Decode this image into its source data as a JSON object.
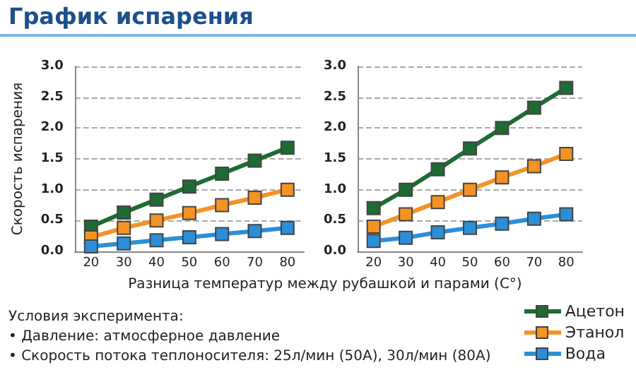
{
  "chart_data": [
    {
      "type": "line",
      "title": "График испарения",
      "xlabel": "Разница температур между рубашкой и парами (C°)",
      "ylabel": "Скорость испарения",
      "x": [
        20,
        30,
        40,
        50,
        60,
        70,
        80
      ],
      "series": [
        {
          "name": "Ацетон",
          "color": "#1e6b34",
          "values": [
            0.4,
            0.63,
            0.84,
            1.05,
            1.26,
            1.47,
            1.68
          ]
        },
        {
          "name": "Этанол",
          "color": "#f39323",
          "values": [
            0.23,
            0.38,
            0.5,
            0.62,
            0.75,
            0.87,
            1.0
          ]
        },
        {
          "name": "Вода",
          "color": "#2a8fd8",
          "values": [
            0.08,
            0.13,
            0.18,
            0.23,
            0.28,
            0.33,
            0.38
          ]
        }
      ],
      "xlim": [
        15,
        85
      ],
      "xticks": [
        20,
        30,
        40,
        50,
        60,
        70,
        80
      ],
      "ylim": [
        0,
        3
      ],
      "yticks": [
        {
          "value": 0,
          "label": "0.0"
        },
        0.5,
        {
          "value": 1,
          "label": "1.0"
        },
        1.5,
        {
          "value": 2,
          "label": "2.0"
        },
        2.5,
        {
          "value": 3,
          "label": "3.0"
        }
      ],
      "grid": "y",
      "marker": "square",
      "line_style": "solid",
      "legend": "bottom right",
      "annotations": [
        "Условия эксперимента:",
        "• Давление: атмосферное давление",
        "• Скорость потока теплоносителя: 25л/мин (50A), 30л/мин (80A)"
      ]
    },
    {
      "type": "line",
      "x": [
        20,
        30,
        40,
        50,
        60,
        70,
        80
      ],
      "series": [
        {
          "color": "#1e6b34",
          "values": [
            0.7,
            1.0,
            1.33,
            1.67,
            2.0,
            2.33,
            2.65
          ]
        },
        {
          "color": "#f39323",
          "values": [
            0.4,
            0.6,
            0.8,
            1.0,
            1.2,
            1.38,
            1.58
          ]
        },
        {
          "color": "#2a8fd8",
          "values": [
            0.17,
            0.22,
            0.31,
            0.38,
            0.45,
            0.53,
            0.6
          ]
        }
      ],
      "xlim": [
        15,
        85
      ],
      "xticks": [
        20,
        30,
        40,
        50,
        60,
        70,
        80
      ],
      "ylim": [
        0,
        3
      ],
      "yticks": [
        {
          "value": 0,
          "label": "0.0"
        },
        0.5,
        {
          "value": 1,
          "label": "1.0"
        },
        1.5,
        {
          "value": 2,
          "label": "2.0"
        },
        2.5,
        {
          "value": 3,
          "label": "3.0"
        }
      ],
      "grid": "y",
      "marker": "square",
      "line_style": "solid"
    }
  ]
}
